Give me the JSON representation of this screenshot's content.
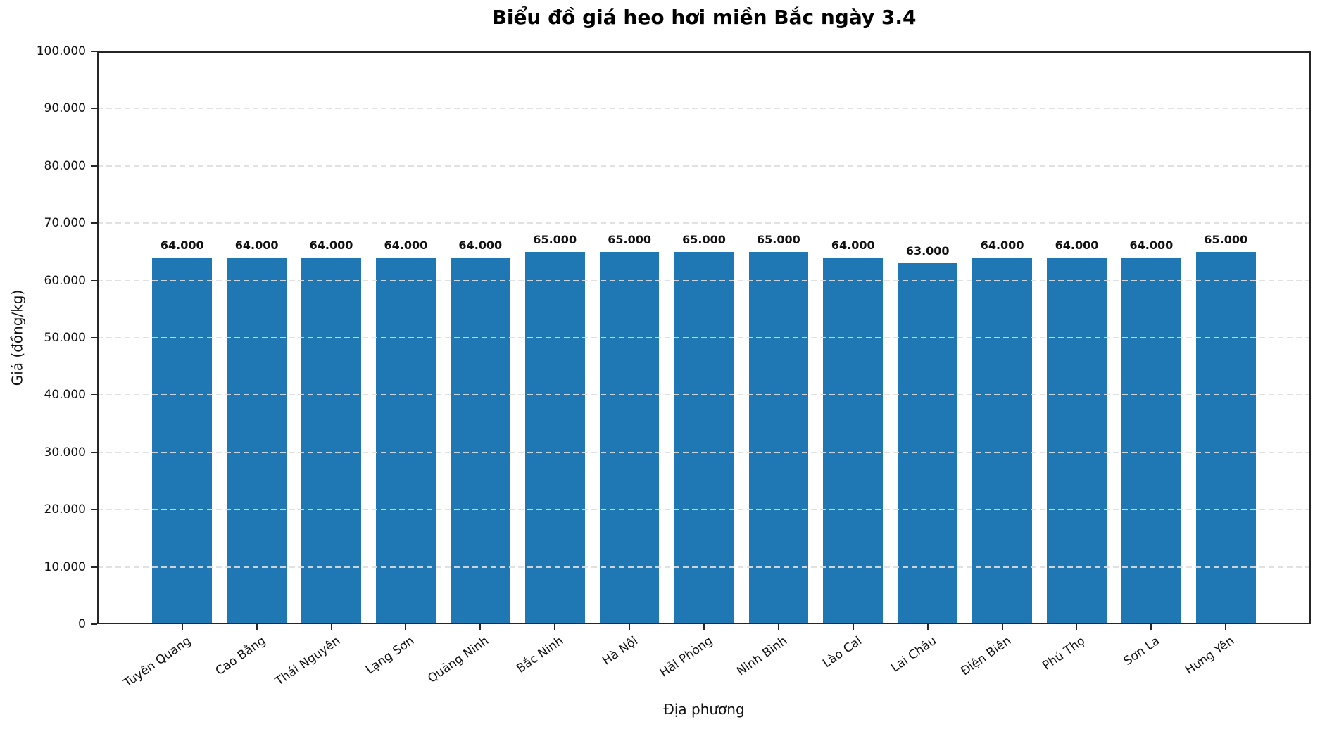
{
  "chart_data": {
    "type": "bar",
    "title": "Biểu đồ giá heo hơi miền Bắc ngày 3.4",
    "xlabel": "Địa phương",
    "ylabel": "Giá (đồng/kg)",
    "categories": [
      "Tuyên Quang",
      "Cao Bằng",
      "Thái Nguyên",
      "Lạng Sơn",
      "Quảng Ninh",
      "Bắc Ninh",
      "Hà Nội",
      "Hải Phòng",
      "Ninh Bình",
      "Lào Cai",
      "Lai Châu",
      "Điện Biên",
      "Phú Thọ",
      "Sơn La",
      "Hưng Yên"
    ],
    "values": [
      64000,
      64000,
      64000,
      64000,
      64000,
      65000,
      65000,
      65000,
      65000,
      64000,
      63000,
      64000,
      64000,
      64000,
      65000
    ],
    "bar_labels": [
      "64.000",
      "64.000",
      "64.000",
      "64.000",
      "64.000",
      "65.000",
      "65.000",
      "65.000",
      "65.000",
      "64.000",
      "63.000",
      "64.000",
      "64.000",
      "64.000",
      "65.000"
    ],
    "yticks": [
      0,
      10000,
      20000,
      30000,
      40000,
      50000,
      60000,
      70000,
      80000,
      90000,
      100000
    ],
    "ytick_labels": [
      "0",
      "10.000",
      "20.000",
      "30.000",
      "40.000",
      "50.000",
      "60.000",
      "70.000",
      "80.000",
      "90.000",
      "100.000"
    ],
    "ylim": [
      0,
      100000
    ],
    "xlim": [
      -1.14,
      15.14
    ],
    "bar_width_units": 0.8,
    "grid": "horizontal dashed",
    "legend": "none",
    "x_tick_rotation_deg": 35,
    "colors": {
      "bar": "#1f77b4",
      "grid": "#dedede",
      "spine": "#262626",
      "text": "#000000",
      "background": "#ffffff"
    }
  }
}
